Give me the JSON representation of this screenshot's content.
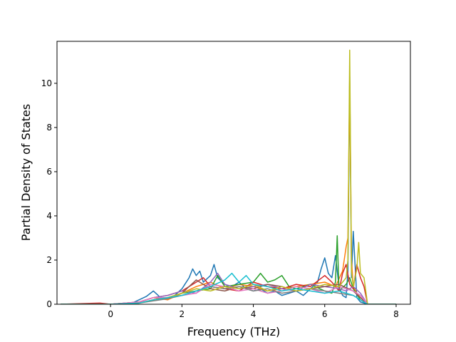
{
  "chart_data": {
    "type": "line",
    "title": "",
    "xlabel": "Frequency (THz)",
    "ylabel": "Partial Density of States",
    "xlim": [
      -1.5,
      8.4
    ],
    "ylim": [
      0,
      11.9
    ],
    "xticks": [
      0,
      2,
      4,
      6,
      8
    ],
    "yticks": [
      0,
      2,
      4,
      6,
      8,
      10
    ],
    "grid": false,
    "legend": "none",
    "series": [
      {
        "color": "#1f77b4",
        "x": [
          -1.4,
          0.0,
          0.6,
          0.8,
          1.0,
          1.2,
          1.4,
          1.6,
          1.8,
          2.0,
          2.2,
          2.3,
          2.4,
          2.5,
          2.6,
          2.8,
          2.9,
          3.0,
          3.2,
          3.4,
          3.6,
          3.8,
          4.0,
          4.2,
          4.4,
          4.6,
          4.8,
          5.0,
          5.2,
          5.4,
          5.6,
          5.8,
          5.9,
          6.0,
          6.1,
          6.2,
          6.3,
          6.4,
          6.5,
          6.6,
          6.65,
          6.7,
          6.75,
          6.8,
          6.9,
          7.0,
          7.1,
          7.2,
          8.0
        ],
        "y": [
          0,
          0,
          0.05,
          0.2,
          0.35,
          0.6,
          0.3,
          0.2,
          0.4,
          0.7,
          1.2,
          1.6,
          1.3,
          1.5,
          1.0,
          1.3,
          1.8,
          1.2,
          0.9,
          0.8,
          1.0,
          0.7,
          0.6,
          0.7,
          0.5,
          0.6,
          0.4,
          0.5,
          0.6,
          0.4,
          0.7,
          1.0,
          1.6,
          2.1,
          1.4,
          1.2,
          2.2,
          0.8,
          0.4,
          0.3,
          1.5,
          10.3,
          1.2,
          3.3,
          0.3,
          0.1,
          0.05,
          0,
          0
        ]
      },
      {
        "color": "#ff7f0e",
        "x": [
          -1.4,
          0.0,
          0.8,
          1.2,
          1.6,
          2.0,
          2.4,
          2.8,
          3.2,
          3.6,
          4.0,
          4.4,
          4.8,
          5.2,
          5.6,
          6.0,
          6.3,
          6.5,
          6.6,
          6.65,
          6.7,
          6.75,
          6.8,
          6.9,
          7.0,
          7.2,
          8.0
        ],
        "y": [
          0,
          0,
          0.1,
          0.3,
          0.2,
          0.5,
          0.8,
          1.0,
          0.7,
          0.9,
          0.8,
          0.6,
          0.7,
          0.8,
          0.9,
          1.0,
          0.8,
          1.5,
          2.6,
          3.0,
          10.1,
          2.0,
          0.8,
          0.5,
          0.3,
          0,
          0
        ]
      },
      {
        "color": "#2ca02c",
        "x": [
          -1.4,
          0.0,
          0.8,
          1.2,
          1.6,
          2.0,
          2.4,
          2.8,
          3.0,
          3.2,
          3.6,
          4.0,
          4.2,
          4.4,
          4.6,
          4.8,
          5.0,
          5.2,
          5.6,
          6.0,
          6.2,
          6.3,
          6.35,
          6.4,
          6.6,
          6.7,
          6.8,
          7.0,
          7.2,
          8.0
        ],
        "y": [
          0,
          0,
          0.05,
          0.2,
          0.3,
          0.5,
          0.6,
          0.7,
          1.3,
          0.8,
          0.9,
          1.0,
          1.4,
          1.0,
          1.1,
          1.3,
          0.8,
          0.7,
          0.9,
          0.6,
          0.5,
          1.0,
          3.1,
          0.6,
          0.9,
          1.2,
          0.7,
          0.2,
          0,
          0
        ]
      },
      {
        "color": "#d62728",
        "x": [
          -1.4,
          -0.3,
          0.0,
          0.8,
          1.2,
          1.6,
          2.0,
          2.4,
          2.6,
          2.8,
          3.2,
          3.6,
          4.0,
          4.4,
          4.8,
          5.2,
          5.6,
          6.0,
          6.2,
          6.4,
          6.5,
          6.6,
          6.7,
          6.8,
          6.9,
          7.0,
          7.1,
          7.2,
          8.0
        ],
        "y": [
          0,
          0.05,
          0,
          0.1,
          0.3,
          0.4,
          0.6,
          1.0,
          1.2,
          0.8,
          0.7,
          0.6,
          1.0,
          0.8,
          0.7,
          0.9,
          0.8,
          1.3,
          1.0,
          0.6,
          1.4,
          1.8,
          0.9,
          0.7,
          1.8,
          1.2,
          0.8,
          0,
          0
        ]
      },
      {
        "color": "#9467bd",
        "x": [
          -1.4,
          0.0,
          0.8,
          1.2,
          1.6,
          2.0,
          2.4,
          2.8,
          3.0,
          3.2,
          3.6,
          4.0,
          4.4,
          4.8,
          5.2,
          5.6,
          6.0,
          6.4,
          6.6,
          6.8,
          7.0,
          7.2,
          8.0
        ],
        "y": [
          0,
          0,
          0.1,
          0.3,
          0.4,
          0.6,
          0.5,
          1.0,
          1.4,
          0.9,
          0.7,
          0.8,
          0.9,
          0.7,
          0.6,
          0.9,
          0.8,
          0.7,
          0.6,
          0.8,
          0.5,
          0,
          0
        ]
      },
      {
        "color": "#8c564b",
        "x": [
          -1.4,
          0.0,
          0.8,
          1.2,
          1.6,
          2.0,
          2.2,
          2.4,
          2.6,
          2.8,
          3.2,
          3.6,
          4.0,
          4.4,
          4.8,
          5.2,
          5.6,
          6.0,
          6.4,
          6.8,
          7.0,
          7.2,
          8.0
        ],
        "y": [
          0,
          0,
          0.05,
          0.2,
          0.3,
          0.5,
          0.8,
          1.1,
          0.9,
          0.7,
          0.6,
          0.8,
          0.7,
          0.9,
          0.8,
          0.6,
          0.7,
          0.8,
          0.9,
          0.6,
          0.3,
          0,
          0
        ]
      },
      {
        "color": "#e377c2",
        "x": [
          -1.4,
          0.0,
          0.8,
          1.2,
          1.6,
          2.0,
          2.4,
          2.8,
          3.2,
          3.6,
          4.0,
          4.4,
          4.8,
          5.2,
          5.6,
          6.0,
          6.4,
          6.8,
          7.0,
          7.2,
          8.0
        ],
        "y": [
          0,
          0,
          0.1,
          0.3,
          0.3,
          0.4,
          0.5,
          0.9,
          0.8,
          0.6,
          0.7,
          0.5,
          0.6,
          0.8,
          0.7,
          0.5,
          0.8,
          0.6,
          0.4,
          0,
          0
        ]
      },
      {
        "color": "#7f7f7f",
        "x": [
          -1.4,
          0.0,
          0.8,
          1.2,
          1.6,
          2.0,
          2.4,
          2.8,
          3.2,
          3.6,
          4.0,
          4.4,
          4.8,
          5.2,
          5.6,
          6.0,
          6.4,
          6.8,
          7.2,
          8.0
        ],
        "y": [
          0,
          0,
          0.05,
          0.15,
          0.25,
          0.4,
          0.6,
          0.8,
          0.7,
          0.8,
          0.6,
          0.7,
          0.5,
          0.6,
          0.7,
          0.6,
          0.5,
          0.4,
          0,
          0
        ]
      },
      {
        "color": "#bcbd22",
        "x": [
          -1.4,
          0.0,
          0.8,
          1.2,
          1.6,
          2.0,
          2.4,
          2.8,
          3.2,
          3.6,
          4.0,
          4.4,
          4.8,
          5.2,
          5.6,
          6.0,
          6.4,
          6.6,
          6.65,
          6.7,
          6.75,
          6.8,
          6.9,
          6.95,
          7.0,
          7.1,
          7.2,
          8.0
        ],
        "y": [
          0,
          0,
          0.05,
          0.2,
          0.3,
          0.5,
          0.7,
          0.6,
          0.8,
          0.7,
          0.9,
          0.6,
          0.8,
          0.6,
          0.7,
          0.9,
          0.8,
          1.2,
          2.0,
          11.5,
          1.5,
          0.8,
          1.6,
          2.8,
          1.4,
          1.2,
          0,
          0
        ]
      },
      {
        "color": "#17becf",
        "x": [
          -1.4,
          0.0,
          0.8,
          1.2,
          1.6,
          2.0,
          2.4,
          2.8,
          3.2,
          3.4,
          3.6,
          3.8,
          4.0,
          4.4,
          4.8,
          5.2,
          5.6,
          6.0,
          6.4,
          6.8,
          7.2,
          8.0
        ],
        "y": [
          0,
          0,
          0.05,
          0.2,
          0.3,
          0.4,
          0.6,
          0.8,
          1.1,
          1.4,
          1.0,
          1.3,
          0.9,
          0.8,
          0.6,
          0.7,
          0.6,
          0.5,
          0.6,
          0.4,
          0,
          0
        ]
      }
    ]
  }
}
